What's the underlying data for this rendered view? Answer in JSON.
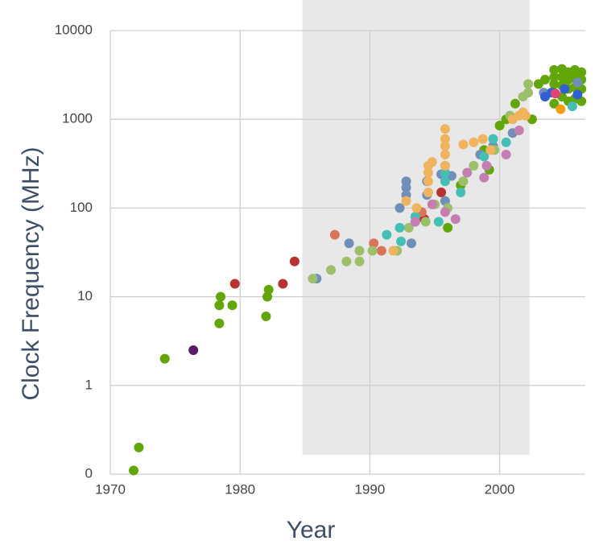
{
  "chart_data": {
    "type": "scatter",
    "x_label": "Year",
    "y_label": "Clock Frequency (MHz)",
    "log_y": true,
    "grid": true,
    "xlim": [
      1970,
      2006.6
    ],
    "xticks": [
      1970,
      1980,
      1990,
      2000
    ],
    "ylim": [
      0.1,
      10000
    ],
    "yticks": [
      {
        "value": 0.1,
        "label": "0"
      },
      1,
      10,
      100,
      1000,
      10000
    ],
    "shaded_span": [
      1984.8,
      2002.3
    ],
    "series": [
      {
        "color": "#62a60a",
        "x": [
          1971.8,
          1972.2,
          1974.2,
          1978.4,
          1978.4,
          1978.5,
          1979.4,
          1982,
          1982.1,
          1982.2,
          1998.8,
          1999.2,
          2000.5,
          2001.2,
          2002.5,
          2003,
          2003.5,
          2004.2,
          2004.2,
          2004.2,
          2004.2,
          2004.2,
          2004.8,
          2004.8,
          2004.8,
          2004.8,
          2005.3,
          2005.3,
          2005.3,
          2005.3,
          2005.8,
          2005.8,
          2005.8,
          2005.8,
          2006.3,
          2006.3,
          2006.3,
          2006.3,
          1996,
          1997,
          2000
        ],
        "values": [
          0.11,
          0.2,
          2,
          5,
          8,
          10,
          8,
          6,
          10,
          12,
          450,
          270,
          1000,
          1500,
          1000,
          2500,
          2800,
          1500,
          2000,
          2500,
          3000,
          3600,
          1800,
          2400,
          3000,
          3700,
          1600,
          2200,
          2800,
          3400,
          1700,
          2300,
          2900,
          3600,
          1600,
          2200,
          2800,
          3400,
          60,
          180,
          850
        ]
      },
      {
        "color": "#5c1a6b",
        "x": [
          1976.4
        ],
        "values": [
          2.5
        ]
      },
      {
        "color": "#b83232",
        "x": [
          1979.6,
          1983.3,
          1984.2,
          1995.5,
          1994.2
        ],
        "values": [
          14,
          14,
          25,
          150,
          75
        ]
      },
      {
        "color": "#d9735a",
        "x": [
          1987.3,
          1990.3,
          1990.9,
          1994
        ],
        "values": [
          50,
          40,
          33,
          90
        ]
      },
      {
        "color": "#6f8fb8",
        "x": [
          1985.9,
          1988.4,
          1992.3,
          1992.8,
          1992.8,
          1992.8,
          1993.2,
          1994.4,
          1994.4,
          1995.5,
          1995.8,
          1996.3,
          1998.5,
          1999.5,
          2001,
          2003.4,
          2006
        ],
        "values": [
          16,
          40,
          100,
          200,
          170,
          140,
          40,
          200,
          140,
          240,
          120,
          230,
          400,
          500,
          700,
          2000,
          2600
        ]
      },
      {
        "color": "#9cc06a",
        "x": [
          1985.6,
          1987,
          1988.2,
          1989.2,
          1989.2,
          1990.2,
          1992.1,
          1993,
          1994.3,
          1995,
          1996,
          1997.2,
          1998,
          1999.6,
          2000.8,
          2002.2,
          2002.2,
          2001.8
        ],
        "values": [
          16,
          20,
          25,
          33,
          25,
          33,
          33,
          60,
          70,
          110,
          100,
          200,
          300,
          450,
          1100,
          2000,
          2500,
          1800
        ]
      },
      {
        "color": "#45bfb5",
        "x": [
          1991.3,
          1992.3,
          1992.4,
          1993.5,
          1995.3,
          1995.8,
          1995.8,
          1995.8,
          1997,
          1998.8,
          1999.5,
          2000.5,
          2005.6
        ],
        "values": [
          50,
          60,
          42,
          80,
          70,
          200,
          250,
          300,
          150,
          380,
          600,
          550,
          1400
        ]
      },
      {
        "color": "#f0b35e",
        "x": [
          1992.8,
          1994.5,
          1994.5,
          1994.5,
          1994.5,
          1994.8,
          1995.8,
          1995.8,
          1995.8,
          1995.8,
          1995.8,
          1997.2,
          1998,
          1998.7,
          1999.3,
          2001,
          2001.5,
          2001.8,
          2002,
          1991.8,
          1993.6
        ],
        "values": [
          120,
          150,
          200,
          250,
          300,
          330,
          300,
          400,
          500,
          600,
          780,
          520,
          550,
          600,
          450,
          1000,
          1100,
          1200,
          1100,
          33,
          100
        ]
      },
      {
        "color": "#c47fb0",
        "x": [
          1993.5,
          1994.8,
          1995.8,
          1996.6,
          1997.5,
          1998.8,
          1999,
          2000.5,
          2001.5
        ],
        "values": [
          70,
          110,
          90,
          75,
          250,
          220,
          300,
          400,
          750
        ]
      },
      {
        "color": "#2f5fd0",
        "x": [
          2003.5,
          2004,
          2005,
          2006
        ],
        "values": [
          1800,
          2000,
          2200,
          1900
        ]
      },
      {
        "color": "#f39c12",
        "x": [
          2004.7
        ],
        "values": [
          1300
        ]
      },
      {
        "color": "#e0457a",
        "x": [
          2004.3
        ],
        "values": [
          1950
        ]
      }
    ]
  }
}
